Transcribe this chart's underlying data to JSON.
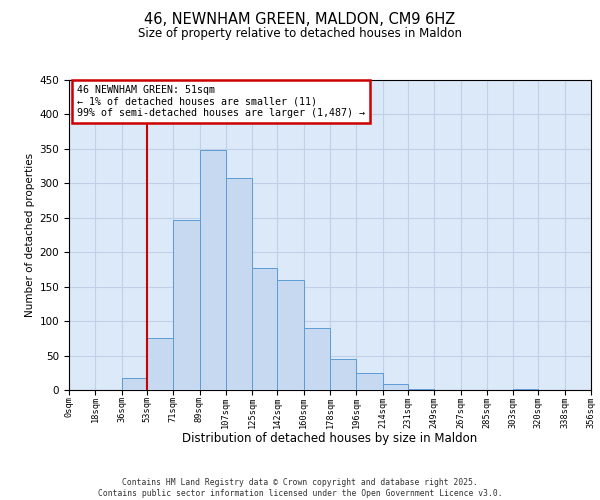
{
  "title": "46, NEWNHAM GREEN, MALDON, CM9 6HZ",
  "subtitle": "Size of property relative to detached houses in Maldon",
  "xlabel": "Distribution of detached houses by size in Maldon",
  "ylabel": "Number of detached properties",
  "bin_edges": [
    0,
    18,
    36,
    53,
    71,
    89,
    107,
    125,
    142,
    160,
    178,
    196,
    214,
    231,
    249,
    267,
    285,
    303,
    320,
    338,
    356
  ],
  "bin_labels": [
    "0sqm",
    "18sqm",
    "36sqm",
    "53sqm",
    "71sqm",
    "89sqm",
    "107sqm",
    "125sqm",
    "142sqm",
    "160sqm",
    "178sqm",
    "196sqm",
    "214sqm",
    "231sqm",
    "249sqm",
    "267sqm",
    "285sqm",
    "303sqm",
    "320sqm",
    "338sqm",
    "356sqm"
  ],
  "counts": [
    0,
    0,
    17,
    75,
    247,
    348,
    308,
    177,
    160,
    90,
    45,
    25,
    8,
    2,
    0,
    0,
    0,
    1,
    0,
    0
  ],
  "bar_facecolor": "#c6d9f1",
  "bar_edgecolor": "#5b9bd5",
  "grid_color": "#c0d0e8",
  "background_color": "#dce9f8",
  "property_line_x": 53,
  "annotation_title": "46 NEWNHAM GREEN: 51sqm",
  "annotation_line1": "← 1% of detached houses are smaller (11)",
  "annotation_line2": "99% of semi-detached houses are larger (1,487) →",
  "annotation_box_facecolor": "#ffffff",
  "annotation_box_edgecolor": "#cc0000",
  "vline_color": "#cc0000",
  "ylim": [
    0,
    450
  ],
  "yticks": [
    0,
    50,
    100,
    150,
    200,
    250,
    300,
    350,
    400,
    450
  ],
  "footer1": "Contains HM Land Registry data © Crown copyright and database right 2025.",
  "footer2": "Contains public sector information licensed under the Open Government Licence v3.0."
}
